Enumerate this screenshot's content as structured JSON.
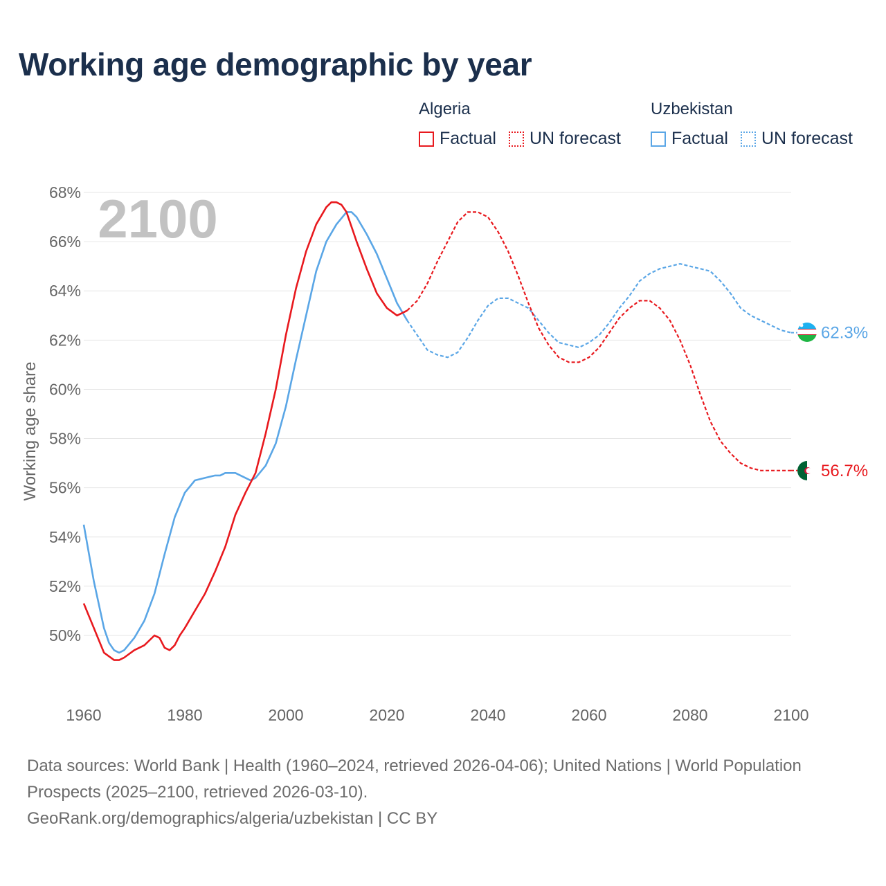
{
  "title": "Working age demographic by year",
  "legend": {
    "groups": [
      {
        "name": "Algeria",
        "color": "#e8191e",
        "factual_label": "Factual",
        "forecast_label": "UN forecast"
      },
      {
        "name": "Uzbekistan",
        "color": "#5aa6e6",
        "factual_label": "Factual",
        "forecast_label": "UN forecast"
      }
    ]
  },
  "year_watermark": "2100",
  "footer": {
    "sources": "Data sources: World Bank | Health (1960–2024, retrieved 2026-04-06); United Nations | World Population Prospects (2025–2100, retrieved 2026-03-10).",
    "credit": "GeoRank.org/demographics/algeria/uzbekistan | CC BY"
  },
  "chart_data": {
    "type": "line",
    "title": "Working age demographic by year",
    "xlabel": "",
    "ylabel": "Working age share",
    "xlim": [
      1960,
      2100
    ],
    "ylim": [
      48,
      68
    ],
    "x_ticks": [
      1960,
      1980,
      2000,
      2020,
      2040,
      2060,
      2080,
      2100
    ],
    "x_tick_labels": [
      "1960",
      "1980",
      "2000",
      "2020",
      "2040",
      "2060",
      "2080",
      "2100"
    ],
    "y_ticks": [
      50,
      52,
      54,
      56,
      58,
      60,
      62,
      64,
      66,
      68
    ],
    "y_tick_labels": [
      "50%",
      "52%",
      "54%",
      "56%",
      "58%",
      "60%",
      "62%",
      "64%",
      "66%",
      "68%"
    ],
    "grid": true,
    "series": [
      {
        "name": "Algeria",
        "color": "#e8191e",
        "end_label": "56.7%",
        "factual": {
          "x": [
            1960,
            1962,
            1964,
            1966,
            1967,
            1968,
            1970,
            1972,
            1974,
            1975,
            1976,
            1977,
            1978,
            1979,
            1980,
            1982,
            1984,
            1986,
            1988,
            1990,
            1992,
            1994,
            1996,
            1998,
            2000,
            2002,
            2004,
            2006,
            2008,
            2009,
            2010,
            2011,
            2012,
            2014,
            2016,
            2018,
            2020,
            2022,
            2024
          ],
          "y": [
            51.3,
            50.3,
            49.3,
            49.0,
            49.0,
            49.1,
            49.4,
            49.6,
            50.0,
            49.9,
            49.5,
            49.4,
            49.6,
            50.0,
            50.3,
            51.0,
            51.7,
            52.6,
            53.6,
            54.9,
            55.8,
            56.6,
            58.2,
            60.0,
            62.2,
            64.1,
            65.6,
            66.7,
            67.4,
            67.6,
            67.6,
            67.5,
            67.2,
            66.0,
            64.9,
            63.9,
            63.3,
            63.0,
            63.2
          ]
        },
        "forecast": {
          "x": [
            2024,
            2026,
            2028,
            2030,
            2032,
            2034,
            2036,
            2038,
            2040,
            2042,
            2044,
            2046,
            2048,
            2050,
            2052,
            2054,
            2056,
            2058,
            2060,
            2062,
            2064,
            2066,
            2068,
            2070,
            2072,
            2074,
            2076,
            2078,
            2080,
            2082,
            2084,
            2086,
            2088,
            2090,
            2092,
            2094,
            2096,
            2098,
            2100
          ],
          "y": [
            63.2,
            63.6,
            64.3,
            65.2,
            66.0,
            66.8,
            67.2,
            67.2,
            67.0,
            66.4,
            65.6,
            64.6,
            63.5,
            62.5,
            61.8,
            61.3,
            61.1,
            61.1,
            61.3,
            61.7,
            62.3,
            62.9,
            63.3,
            63.6,
            63.6,
            63.3,
            62.8,
            62.0,
            61.0,
            59.8,
            58.7,
            57.9,
            57.4,
            57.0,
            56.8,
            56.7,
            56.7,
            56.7,
            56.7
          ]
        }
      },
      {
        "name": "Uzbekistan",
        "color": "#5aa6e6",
        "end_label": "62.3%",
        "factual": {
          "x": [
            1960,
            1962,
            1964,
            1965,
            1966,
            1967,
            1968,
            1970,
            1972,
            1974,
            1976,
            1978,
            1980,
            1982,
            1984,
            1986,
            1987,
            1988,
            1990,
            1992,
            1993,
            1994,
            1996,
            1998,
            2000,
            2002,
            2004,
            2006,
            2008,
            2010,
            2012,
            2013,
            2014,
            2016,
            2018,
            2020,
            2022,
            2024
          ],
          "y": [
            54.5,
            52.2,
            50.3,
            49.7,
            49.4,
            49.3,
            49.4,
            49.9,
            50.6,
            51.7,
            53.3,
            54.8,
            55.8,
            56.3,
            56.4,
            56.5,
            56.5,
            56.6,
            56.6,
            56.4,
            56.3,
            56.4,
            56.9,
            57.8,
            59.3,
            61.2,
            63.0,
            64.8,
            66.0,
            66.7,
            67.2,
            67.2,
            67.0,
            66.3,
            65.5,
            64.5,
            63.5,
            62.8
          ]
        },
        "forecast": {
          "x": [
            2024,
            2026,
            2028,
            2030,
            2032,
            2034,
            2036,
            2038,
            2040,
            2042,
            2044,
            2046,
            2048,
            2050,
            2052,
            2054,
            2056,
            2058,
            2060,
            2062,
            2064,
            2066,
            2068,
            2070,
            2072,
            2074,
            2076,
            2078,
            2080,
            2082,
            2084,
            2086,
            2088,
            2090,
            2092,
            2094,
            2096,
            2098,
            2100
          ],
          "y": [
            62.8,
            62.2,
            61.6,
            61.4,
            61.3,
            61.5,
            62.1,
            62.8,
            63.4,
            63.7,
            63.7,
            63.5,
            63.3,
            62.8,
            62.3,
            61.9,
            61.8,
            61.7,
            61.9,
            62.2,
            62.7,
            63.3,
            63.8,
            64.4,
            64.7,
            64.9,
            65.0,
            65.1,
            65.0,
            64.9,
            64.8,
            64.4,
            63.9,
            63.3,
            63.0,
            62.8,
            62.6,
            62.4,
            62.3
          ]
        }
      }
    ]
  }
}
